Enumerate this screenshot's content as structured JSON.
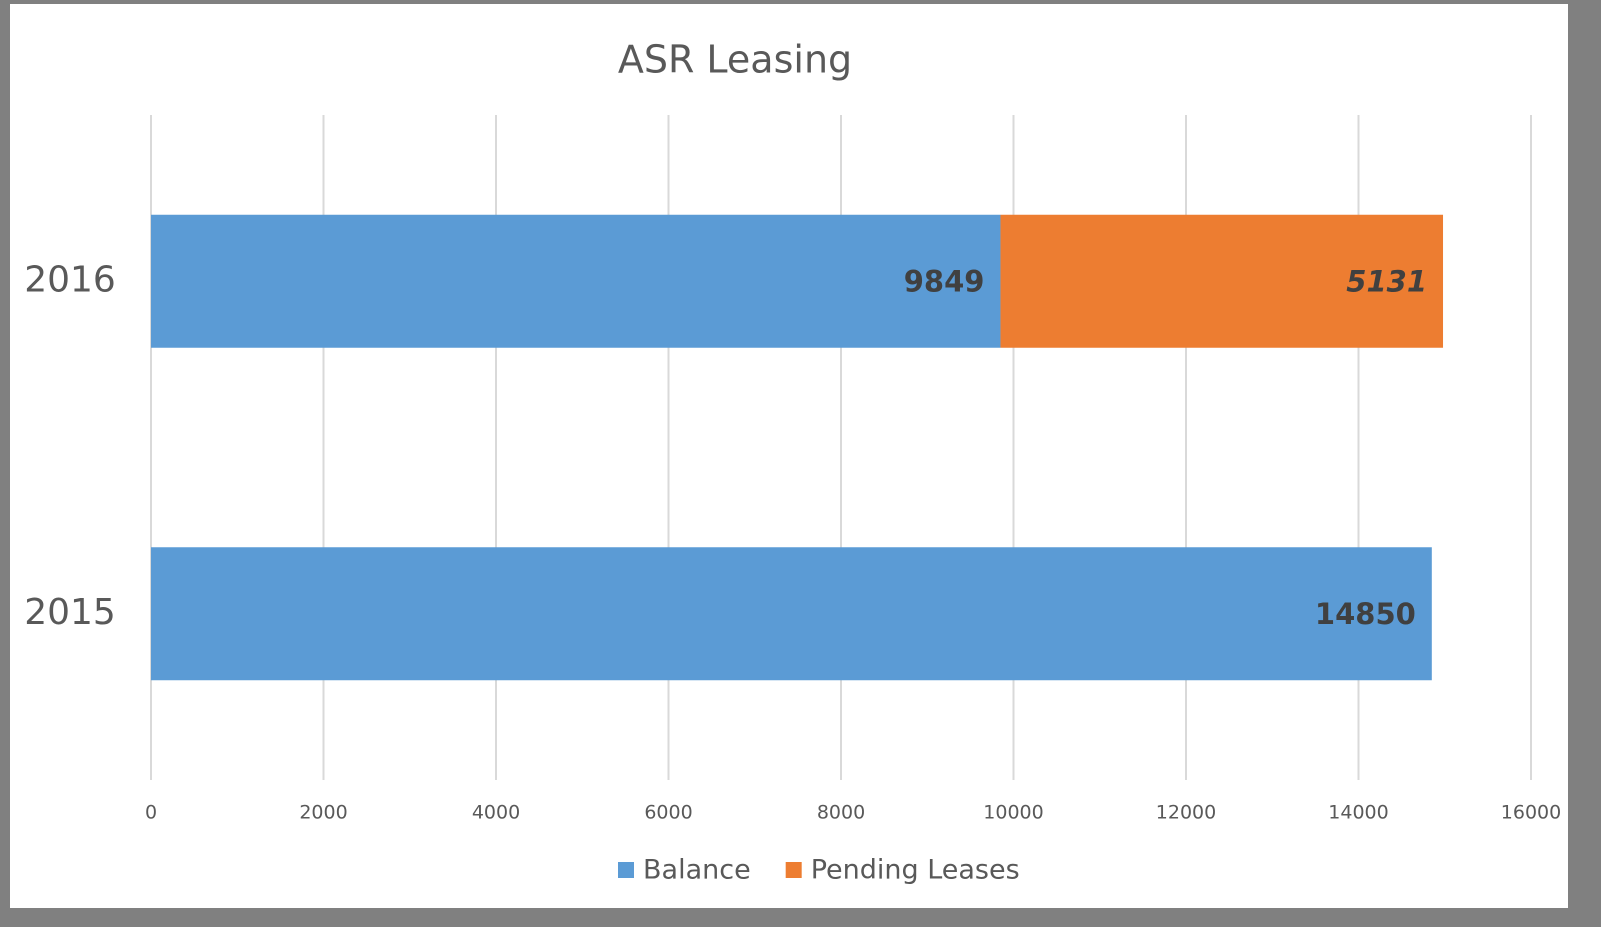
{
  "chart_data": {
    "type": "bar",
    "orientation": "horizontal",
    "stacked": true,
    "title": "ASR Leasing",
    "categories": [
      "2015",
      "2016"
    ],
    "series": [
      {
        "name": "Balance",
        "color": "#5b9bd5",
        "values": [
          14850,
          9849
        ]
      },
      {
        "name": "Pending Leases",
        "color": "#ed7d31",
        "values": [
          null,
          5131
        ]
      }
    ],
    "xlim": [
      0,
      16000
    ],
    "xticks": [
      0,
      2000,
      4000,
      6000,
      8000,
      10000,
      12000,
      14000,
      16000
    ],
    "grid": true,
    "legend": "bottom"
  }
}
